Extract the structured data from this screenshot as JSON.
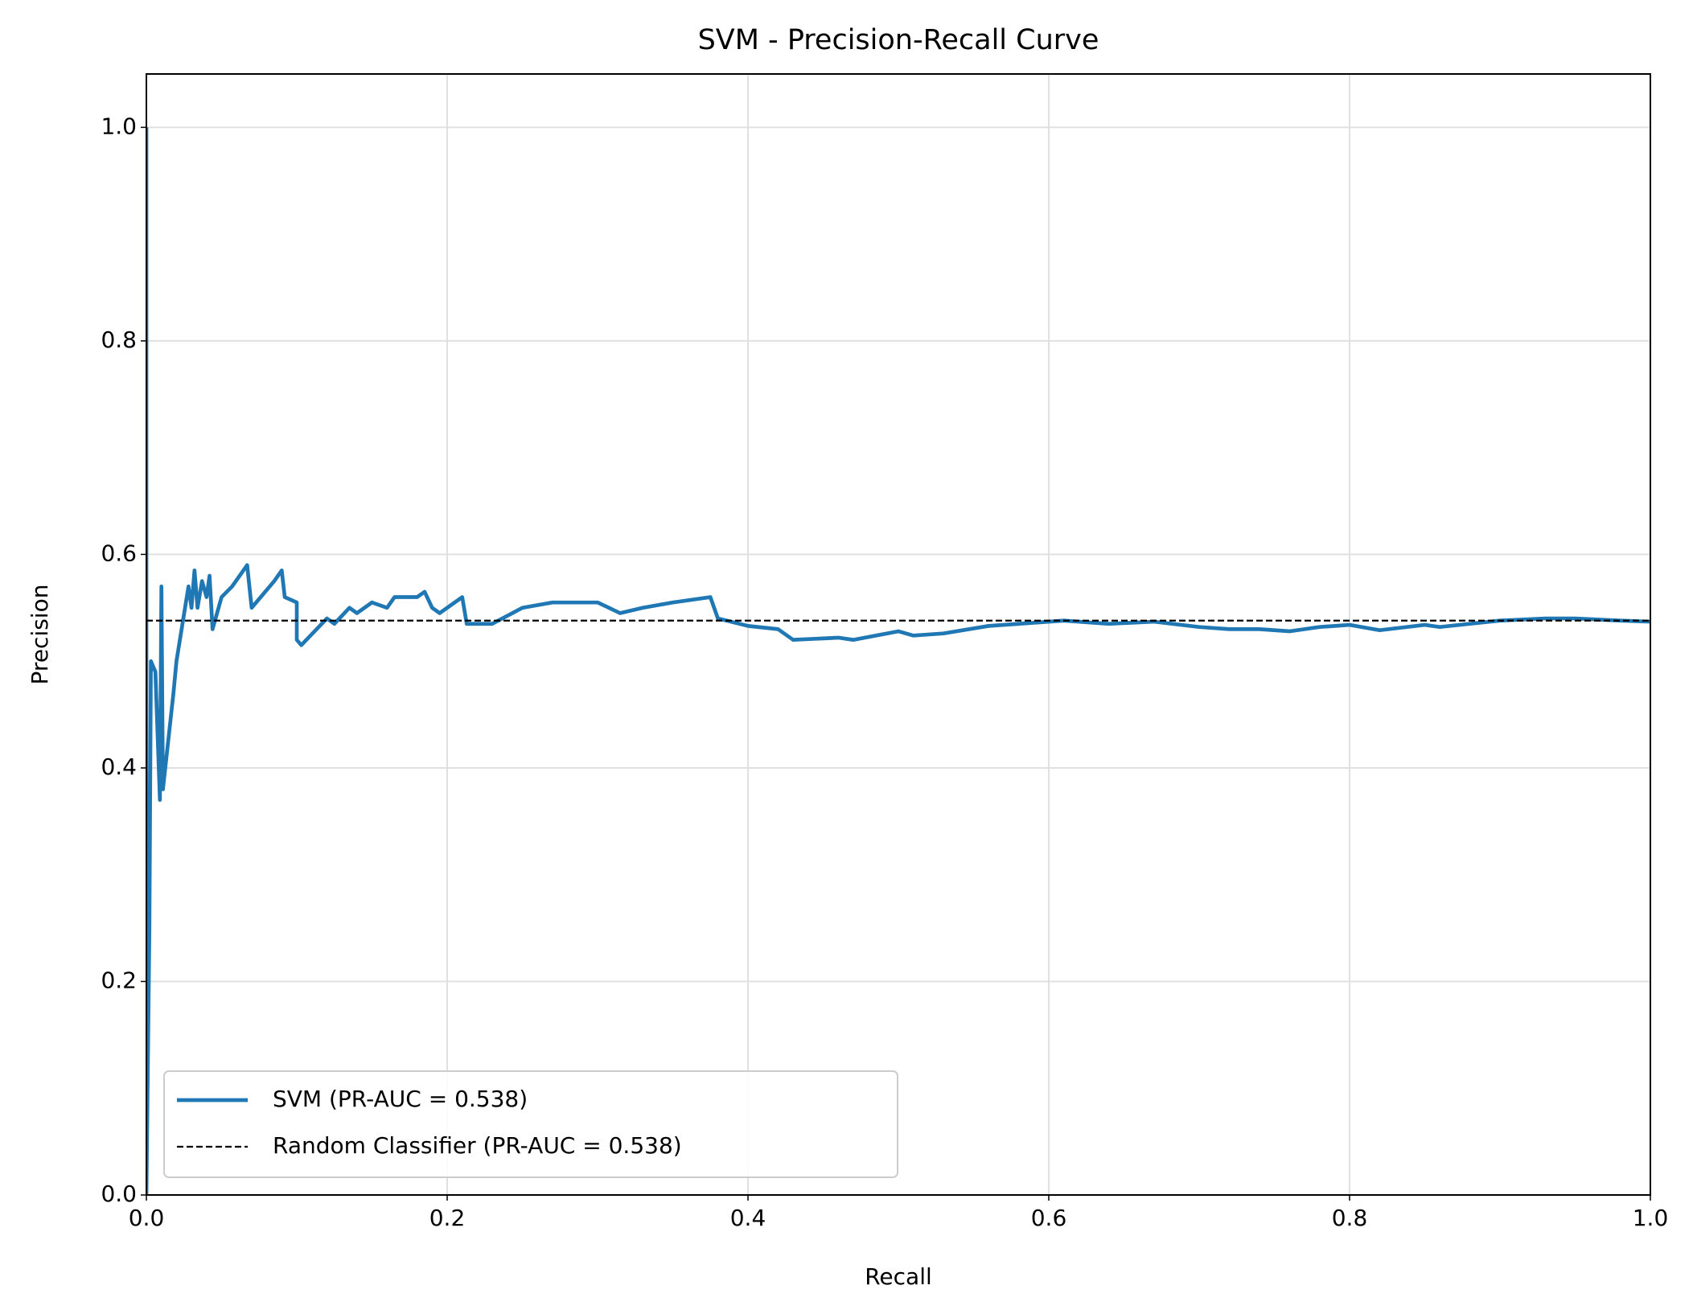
{
  "chart_data": {
    "type": "line",
    "title": "SVM - Precision-Recall Curve",
    "x_label": "Recall",
    "y_label": "Precision",
    "xlim": [
      0,
      1
    ],
    "ylim": [
      0,
      1.05
    ],
    "xticks": [
      {
        "value": 0,
        "label": "0.0"
      },
      0.2,
      0.4,
      0.6,
      0.8,
      {
        "value": 1,
        "label": "1.0"
      }
    ],
    "yticks": [
      {
        "value": 0,
        "label": "0.0"
      },
      0.2,
      0.4,
      0.6,
      0.8,
      {
        "value": 1,
        "label": "1.0"
      }
    ],
    "grid": true,
    "legend": "lower left",
    "series": [
      {
        "name": "SVM (PR-AUC = 0.538)",
        "color": "#1f77b4",
        "linestyle": "solid",
        "x": [
          0,
          0,
          0.002,
          0.003,
          0.006,
          0.009,
          0.01,
          0.011,
          0.018,
          0.02,
          0.028,
          0.03,
          0.032,
          0.034,
          0.037,
          0.04,
          0.042,
          0.044,
          0.05,
          0.057,
          0.062,
          0.067,
          0.07,
          0.085,
          0.09,
          0.092,
          0.1,
          0.1,
          0.103,
          0.12,
          0.125,
          0.135,
          0.14,
          0.15,
          0.16,
          0.165,
          0.18,
          0.185,
          0.19,
          0.195,
          0.21,
          0.213,
          0.23,
          0.25,
          0.27,
          0.3,
          0.315,
          0.33,
          0.35,
          0.375,
          0.38,
          0.4,
          0.42,
          0.43,
          0.46,
          0.47,
          0.5,
          0.51,
          0.53,
          0.56,
          0.58,
          0.61,
          0.64,
          0.67,
          0.7,
          0.72,
          0.74,
          0.76,
          0.78,
          0.8,
          0.82,
          0.85,
          0.86,
          0.88,
          0.9,
          0.93,
          0.95,
          0.98,
          1.0
        ],
        "values": [
          1.0,
          0,
          0.25,
          0.5,
          0.49,
          0.37,
          0.57,
          0.38,
          0.47,
          0.5,
          0.57,
          0.55,
          0.585,
          0.55,
          0.575,
          0.56,
          0.58,
          0.53,
          0.56,
          0.57,
          0.58,
          0.59,
          0.55,
          0.575,
          0.585,
          0.56,
          0.555,
          0.52,
          0.515,
          0.54,
          0.535,
          0.55,
          0.545,
          0.555,
          0.55,
          0.56,
          0.56,
          0.565,
          0.55,
          0.545,
          0.56,
          0.535,
          0.535,
          0.55,
          0.555,
          0.555,
          0.545,
          0.55,
          0.555,
          0.56,
          0.54,
          0.533,
          0.53,
          0.52,
          0.522,
          0.52,
          0.528,
          0.524,
          0.526,
          0.533,
          0.535,
          0.538,
          0.535,
          0.537,
          0.532,
          0.53,
          0.53,
          0.528,
          0.532,
          0.534,
          0.529,
          0.534,
          0.532,
          0.535,
          0.538,
          0.54,
          0.54,
          0.538,
          0.537
        ]
      },
      {
        "name": "Random Classifier (PR-AUC = 0.538)",
        "color": "#000000",
        "linestyle": "dashed",
        "x": [
          0,
          1
        ],
        "values": [
          0.538,
          0.538
        ]
      }
    ]
  }
}
